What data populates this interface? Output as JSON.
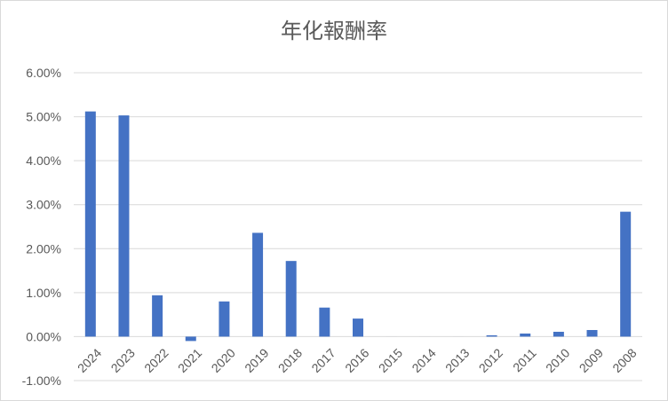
{
  "chart_data": {
    "type": "bar",
    "title": "年化報酬率",
    "xlabel": "",
    "ylabel": "",
    "categories": [
      "2024",
      "2023",
      "2022",
      "2021",
      "2020",
      "2019",
      "2018",
      "2017",
      "2016",
      "2015",
      "2014",
      "2013",
      "2012",
      "2011",
      "2010",
      "2009",
      "2008"
    ],
    "values": [
      5.12,
      5.03,
      0.94,
      -0.1,
      0.8,
      2.36,
      1.72,
      0.66,
      0.41,
      0.0,
      0.0,
      0.0,
      0.03,
      0.07,
      0.11,
      0.15,
      2.84
    ],
    "ylim": [
      -1.0,
      6.0
    ],
    "yticks": [
      6.0,
      5.0,
      4.0,
      3.0,
      2.0,
      1.0,
      0.0,
      -1.0
    ],
    "ytick_labels": [
      "6.00%",
      "5.00%",
      "4.00%",
      "3.00%",
      "2.00%",
      "1.00%",
      "0.00%",
      "-1.00%"
    ],
    "grid": true,
    "legend": "none",
    "bar_color": "#4472c4",
    "grid_color": "#d9d9d9"
  }
}
